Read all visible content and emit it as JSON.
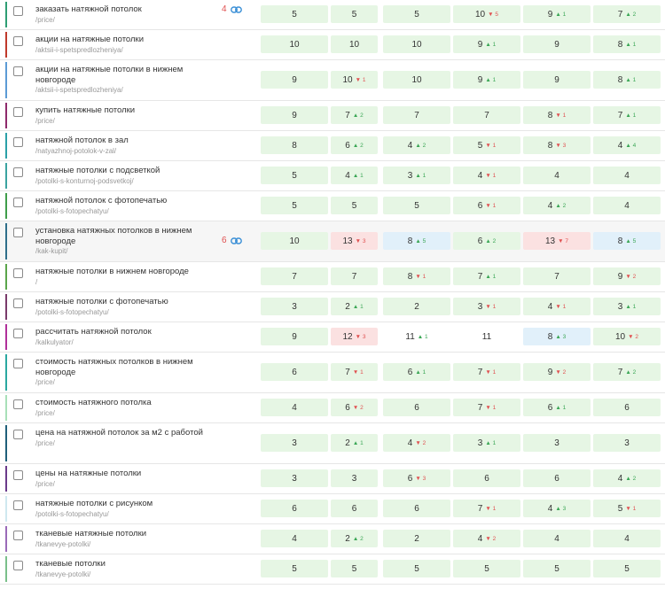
{
  "rows": [
    {
      "keyword": "заказать натяжной потолок",
      "url": "/price/",
      "stripe": "#2e9e73",
      "links": "4",
      "tall": false,
      "hl": false,
      "cells": [
        {
          "v": "5",
          "d": "",
          "dir": "",
          "bg": "green"
        },
        {
          "v": "5",
          "d": "",
          "dir": "",
          "bg": "green"
        },
        {
          "v": "5",
          "d": "",
          "dir": "",
          "bg": "green"
        },
        {
          "v": "10",
          "d": "5",
          "dir": "down",
          "bg": "green"
        },
        {
          "v": "9",
          "d": "1",
          "dir": "up",
          "bg": "green"
        },
        {
          "v": "7",
          "d": "2",
          "dir": "up",
          "bg": "green"
        }
      ]
    },
    {
      "keyword": "акции на натяжные потолки",
      "url": "/aktsii-i-spetspredlozheniya/",
      "stripe": "#c0392b",
      "links": "",
      "tall": false,
      "hl": false,
      "cells": [
        {
          "v": "10",
          "d": "",
          "dir": "",
          "bg": "green"
        },
        {
          "v": "10",
          "d": "",
          "dir": "",
          "bg": "green"
        },
        {
          "v": "10",
          "d": "",
          "dir": "",
          "bg": "green"
        },
        {
          "v": "9",
          "d": "1",
          "dir": "up",
          "bg": "green"
        },
        {
          "v": "9",
          "d": "",
          "dir": "",
          "bg": "green"
        },
        {
          "v": "8",
          "d": "1",
          "dir": "up",
          "bg": "green"
        }
      ]
    },
    {
      "keyword": "акции на натяжные потолки в нижнем новгороде",
      "url": "/aktsii-i-spetspredlozheniya/",
      "stripe": "#5b9bd5",
      "links": "",
      "tall": true,
      "hl": false,
      "cells": [
        {
          "v": "9",
          "d": "",
          "dir": "",
          "bg": "green"
        },
        {
          "v": "10",
          "d": "1",
          "dir": "down",
          "bg": "green"
        },
        {
          "v": "10",
          "d": "",
          "dir": "",
          "bg": "green"
        },
        {
          "v": "9",
          "d": "1",
          "dir": "up",
          "bg": "green"
        },
        {
          "v": "9",
          "d": "",
          "dir": "",
          "bg": "green"
        },
        {
          "v": "8",
          "d": "1",
          "dir": "up",
          "bg": "green"
        }
      ]
    },
    {
      "keyword": "купить натяжные потолки",
      "url": "/price/",
      "stripe": "#8e2a6b",
      "links": "",
      "tall": false,
      "hl": false,
      "cells": [
        {
          "v": "9",
          "d": "",
          "dir": "",
          "bg": "green"
        },
        {
          "v": "7",
          "d": "2",
          "dir": "up",
          "bg": "green"
        },
        {
          "v": "7",
          "d": "",
          "dir": "",
          "bg": "green"
        },
        {
          "v": "7",
          "d": "",
          "dir": "",
          "bg": "green"
        },
        {
          "v": "8",
          "d": "1",
          "dir": "down",
          "bg": "green"
        },
        {
          "v": "7",
          "d": "1",
          "dir": "up",
          "bg": "green"
        }
      ]
    },
    {
      "keyword": "натяжной потолок в зал",
      "url": "/natyazhnoj-potolok-v-zal/",
      "stripe": "#2aa0a8",
      "links": "",
      "tall": false,
      "hl": false,
      "cells": [
        {
          "v": "8",
          "d": "",
          "dir": "",
          "bg": "green"
        },
        {
          "v": "6",
          "d": "2",
          "dir": "up",
          "bg": "green"
        },
        {
          "v": "4",
          "d": "2",
          "dir": "up",
          "bg": "green"
        },
        {
          "v": "5",
          "d": "1",
          "dir": "down",
          "bg": "green"
        },
        {
          "v": "8",
          "d": "3",
          "dir": "down",
          "bg": "green"
        },
        {
          "v": "4",
          "d": "4",
          "dir": "up",
          "bg": "green"
        }
      ]
    },
    {
      "keyword": "натяжные потолки с подсветкой",
      "url": "/potolki-s-konturnoj-podsvetkoj/",
      "stripe": "#3aa3a0",
      "links": "",
      "tall": false,
      "hl": false,
      "cells": [
        {
          "v": "5",
          "d": "",
          "dir": "",
          "bg": "green"
        },
        {
          "v": "4",
          "d": "1",
          "dir": "up",
          "bg": "green"
        },
        {
          "v": "3",
          "d": "1",
          "dir": "up",
          "bg": "green"
        },
        {
          "v": "4",
          "d": "1",
          "dir": "down",
          "bg": "green"
        },
        {
          "v": "4",
          "d": "",
          "dir": "",
          "bg": "green"
        },
        {
          "v": "4",
          "d": "",
          "dir": "",
          "bg": "green"
        }
      ]
    },
    {
      "keyword": "натяжной потолок с фотопечатью",
      "url": "/potolki-s-fotopechatyu/",
      "stripe": "#3f9e4a",
      "links": "",
      "tall": false,
      "hl": false,
      "cells": [
        {
          "v": "5",
          "d": "",
          "dir": "",
          "bg": "green"
        },
        {
          "v": "5",
          "d": "",
          "dir": "",
          "bg": "green"
        },
        {
          "v": "5",
          "d": "",
          "dir": "",
          "bg": "green"
        },
        {
          "v": "6",
          "d": "1",
          "dir": "down",
          "bg": "green"
        },
        {
          "v": "4",
          "d": "2",
          "dir": "up",
          "bg": "green"
        },
        {
          "v": "4",
          "d": "",
          "dir": "",
          "bg": "green"
        }
      ]
    },
    {
      "keyword": "установка натяжных потолков в нижнем новгороде",
      "url": "/kak-kupit/",
      "stripe": "#2e6f8a",
      "links": "6",
      "tall": true,
      "hl": true,
      "cells": [
        {
          "v": "10",
          "d": "",
          "dir": "",
          "bg": "green"
        },
        {
          "v": "13",
          "d": "3",
          "dir": "down",
          "bg": "red"
        },
        {
          "v": "8",
          "d": "5",
          "dir": "up",
          "bg": "blue"
        },
        {
          "v": "6",
          "d": "2",
          "dir": "up",
          "bg": "green"
        },
        {
          "v": "13",
          "d": "7",
          "dir": "down",
          "bg": "red"
        },
        {
          "v": "8",
          "d": "5",
          "dir": "up",
          "bg": "blue"
        }
      ]
    },
    {
      "keyword": "натяжные потолки в нижнем новгороде",
      "url": "/",
      "stripe": "#5aa54a",
      "links": "",
      "tall": false,
      "hl": false,
      "cells": [
        {
          "v": "7",
          "d": "",
          "dir": "",
          "bg": "green"
        },
        {
          "v": "7",
          "d": "",
          "dir": "",
          "bg": "green"
        },
        {
          "v": "8",
          "d": "1",
          "dir": "down",
          "bg": "green"
        },
        {
          "v": "7",
          "d": "1",
          "dir": "up",
          "bg": "green"
        },
        {
          "v": "7",
          "d": "",
          "dir": "",
          "bg": "green"
        },
        {
          "v": "9",
          "d": "2",
          "dir": "down",
          "bg": "green"
        }
      ]
    },
    {
      "keyword": "натяжные потолки с фотопечатью",
      "url": "/potolki-s-fotopechatyu/",
      "stripe": "#7a3a6a",
      "links": "",
      "tall": false,
      "hl": false,
      "cells": [
        {
          "v": "3",
          "d": "",
          "dir": "",
          "bg": "green"
        },
        {
          "v": "2",
          "d": "1",
          "dir": "up",
          "bg": "green"
        },
        {
          "v": "2",
          "d": "",
          "dir": "",
          "bg": "green"
        },
        {
          "v": "3",
          "d": "1",
          "dir": "down",
          "bg": "green"
        },
        {
          "v": "4",
          "d": "1",
          "dir": "down",
          "bg": "green"
        },
        {
          "v": "3",
          "d": "1",
          "dir": "up",
          "bg": "green"
        }
      ]
    },
    {
      "keyword": "рассчитать натяжной потолок",
      "url": "/kalkulyator/",
      "stripe": "#b0309a",
      "links": "",
      "tall": false,
      "hl": false,
      "cells": [
        {
          "v": "9",
          "d": "",
          "dir": "",
          "bg": "green"
        },
        {
          "v": "12",
          "d": "3",
          "dir": "down",
          "bg": "red"
        },
        {
          "v": "11",
          "d": "1",
          "dir": "up",
          "bg": "plain"
        },
        {
          "v": "11",
          "d": "",
          "dir": "",
          "bg": "plain"
        },
        {
          "v": "8",
          "d": "3",
          "dir": "up",
          "bg": "blue"
        },
        {
          "v": "10",
          "d": "2",
          "dir": "down",
          "bg": "green"
        }
      ]
    },
    {
      "keyword": "стоимость натяжных потолков в нижнем новгороде",
      "url": "/price/",
      "stripe": "#2aa8a0",
      "links": "",
      "tall": true,
      "hl": false,
      "cells": [
        {
          "v": "6",
          "d": "",
          "dir": "",
          "bg": "green"
        },
        {
          "v": "7",
          "d": "1",
          "dir": "down",
          "bg": "green"
        },
        {
          "v": "6",
          "d": "1",
          "dir": "up",
          "bg": "green"
        },
        {
          "v": "7",
          "d": "1",
          "dir": "down",
          "bg": "green"
        },
        {
          "v": "9",
          "d": "2",
          "dir": "down",
          "bg": "green"
        },
        {
          "v": "7",
          "d": "2",
          "dir": "up",
          "bg": "green"
        }
      ]
    },
    {
      "keyword": "стоимость натяжного потолка",
      "url": "/price/",
      "stripe": "#a8e0b8",
      "links": "",
      "tall": false,
      "hl": false,
      "cells": [
        {
          "v": "4",
          "d": "",
          "dir": "",
          "bg": "green"
        },
        {
          "v": "6",
          "d": "2",
          "dir": "down",
          "bg": "green"
        },
        {
          "v": "6",
          "d": "",
          "dir": "",
          "bg": "green"
        },
        {
          "v": "7",
          "d": "1",
          "dir": "down",
          "bg": "green"
        },
        {
          "v": "6",
          "d": "1",
          "dir": "up",
          "bg": "green"
        },
        {
          "v": "6",
          "d": "",
          "dir": "",
          "bg": "green"
        }
      ]
    },
    {
      "keyword": "цена на натяжной потолок за м2 с работой",
      "url": "/price/",
      "stripe": "#1f5f7a",
      "links": "",
      "tall": true,
      "hl": false,
      "cells": [
        {
          "v": "3",
          "d": "",
          "dir": "",
          "bg": "green"
        },
        {
          "v": "2",
          "d": "1",
          "dir": "up",
          "bg": "green"
        },
        {
          "v": "4",
          "d": "2",
          "dir": "down",
          "bg": "green"
        },
        {
          "v": "3",
          "d": "1",
          "dir": "up",
          "bg": "green"
        },
        {
          "v": "3",
          "d": "",
          "dir": "",
          "bg": "green"
        },
        {
          "v": "3",
          "d": "",
          "dir": "",
          "bg": "green"
        }
      ]
    },
    {
      "keyword": "цены на натяжные потолки",
      "url": "/price/",
      "stripe": "#6a3a8a",
      "links": "",
      "tall": false,
      "hl": false,
      "cells": [
        {
          "v": "3",
          "d": "",
          "dir": "",
          "bg": "green"
        },
        {
          "v": "3",
          "d": "",
          "dir": "",
          "bg": "green"
        },
        {
          "v": "6",
          "d": "3",
          "dir": "down",
          "bg": "green"
        },
        {
          "v": "6",
          "d": "",
          "dir": "",
          "bg": "green"
        },
        {
          "v": "6",
          "d": "",
          "dir": "",
          "bg": "green"
        },
        {
          "v": "4",
          "d": "2",
          "dir": "up",
          "bg": "green"
        }
      ]
    },
    {
      "keyword": "натяжные потолки с рисунком",
      "url": "/potolki-s-fotopechatyu/",
      "stripe": "#cfe8f0",
      "links": "",
      "tall": false,
      "hl": false,
      "cells": [
        {
          "v": "6",
          "d": "",
          "dir": "",
          "bg": "green"
        },
        {
          "v": "6",
          "d": "",
          "dir": "",
          "bg": "green"
        },
        {
          "v": "6",
          "d": "",
          "dir": "",
          "bg": "green"
        },
        {
          "v": "7",
          "d": "1",
          "dir": "down",
          "bg": "green"
        },
        {
          "v": "4",
          "d": "3",
          "dir": "up",
          "bg": "green"
        },
        {
          "v": "5",
          "d": "1",
          "dir": "down",
          "bg": "green"
        }
      ]
    },
    {
      "keyword": "тканевые натяжные потолки",
      "url": "/tkanevye-potolki/",
      "stripe": "#9a6ab8",
      "links": "",
      "tall": false,
      "hl": false,
      "cells": [
        {
          "v": "4",
          "d": "",
          "dir": "",
          "bg": "green"
        },
        {
          "v": "2",
          "d": "2",
          "dir": "up",
          "bg": "green"
        },
        {
          "v": "2",
          "d": "",
          "dir": "",
          "bg": "green"
        },
        {
          "v": "4",
          "d": "2",
          "dir": "down",
          "bg": "green"
        },
        {
          "v": "4",
          "d": "",
          "dir": "",
          "bg": "green"
        },
        {
          "v": "4",
          "d": "",
          "dir": "",
          "bg": "green"
        }
      ]
    },
    {
      "keyword": "тканевые потолки",
      "url": "/tkanevye-potolki/",
      "stripe": "#7ac08a",
      "links": "",
      "tall": false,
      "hl": false,
      "cells": [
        {
          "v": "5",
          "d": "",
          "dir": "",
          "bg": "green"
        },
        {
          "v": "5",
          "d": "",
          "dir": "",
          "bg": "green"
        },
        {
          "v": "5",
          "d": "",
          "dir": "",
          "bg": "green"
        },
        {
          "v": "5",
          "d": "",
          "dir": "",
          "bg": "green"
        },
        {
          "v": "5",
          "d": "",
          "dir": "",
          "bg": "green"
        },
        {
          "v": "5",
          "d": "",
          "dir": "",
          "bg": "green"
        }
      ]
    }
  ],
  "icons": {
    "link": "link-icon",
    "checkbox": "checkbox-icon"
  },
  "colors": {
    "up": "#3aa655",
    "down": "#e05050",
    "cell_green": "#e6f6e4",
    "cell_red": "#fbe1e1",
    "cell_blue": "#e1f0fa"
  }
}
